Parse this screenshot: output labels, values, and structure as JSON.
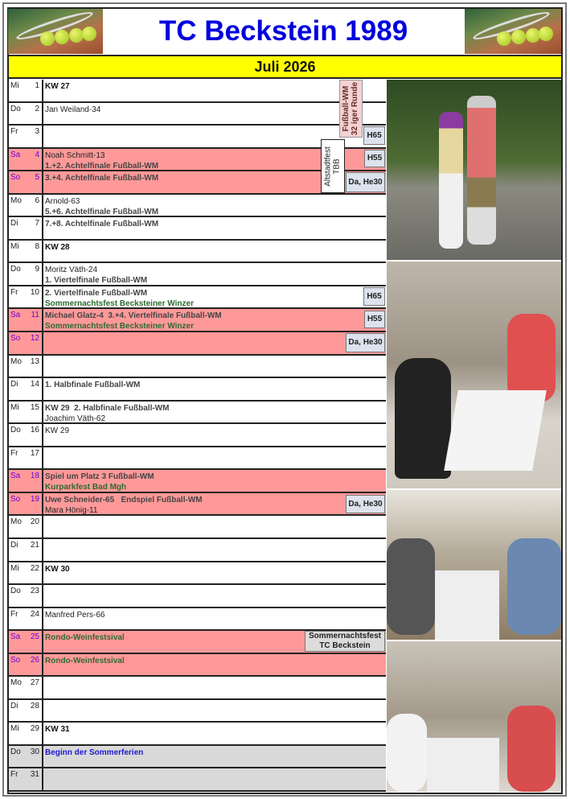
{
  "header": {
    "title": "TC Beckstein 1989",
    "month": "Juli 2026",
    "logo_icon": "tennis-balls-racket-logo"
  },
  "colors": {
    "title": "#0000dd",
    "month_bar": "#ffff00",
    "weekend": "#ff9999",
    "holiday": "#d9d9d9",
    "badge": "#dce3ee"
  },
  "rows": [
    {
      "day": "Mi",
      "num": "1",
      "lines": [
        {
          "t": "KW 27",
          "s": "kw"
        }
      ]
    },
    {
      "day": "Do",
      "num": "2",
      "lines": [
        {
          "t": "Jan Weiland-34",
          "s": "name"
        }
      ]
    },
    {
      "day": "Fr",
      "num": "3",
      "lines": []
    },
    {
      "day": "Sa",
      "num": "4",
      "we": true,
      "lines": [
        {
          "t": "Noah Schmitt-13",
          "s": "name"
        },
        {
          "t": "1.+2. Achtelfinale Fußball-WM",
          "s": "wm"
        }
      ]
    },
    {
      "day": "So",
      "num": "5",
      "we": true,
      "lines": [
        {
          "t": "3.+4. Achtelfinale Fußball-WM",
          "s": "wm"
        }
      ]
    },
    {
      "day": "Mo",
      "num": "6",
      "lines": [
        {
          "t": "Arnold-63",
          "s": "name"
        },
        {
          "t": "5.+6. Achtelfinale Fußball-WM",
          "s": "wm"
        }
      ]
    },
    {
      "day": "Di",
      "num": "7",
      "lines": [
        {
          "t": "7.+8. Achtelfinale Fußball-WM",
          "s": "wm"
        }
      ]
    },
    {
      "day": "Mi",
      "num": "8",
      "lines": [
        {
          "t": "KW 28",
          "s": "kw"
        }
      ]
    },
    {
      "day": "Do",
      "num": "9",
      "lines": [
        {
          "t": "Moritz Väth-24",
          "s": "name"
        },
        {
          "t": "1. Viertelfinale Fußball-WM",
          "s": "wm"
        }
      ]
    },
    {
      "day": "Fr",
      "num": "10",
      "lines": [
        {
          "t": "2. Viertelfinale Fußball-WM",
          "s": "wm"
        },
        {
          "t": "Sommernachtsfest Becksteiner Winzer",
          "s": "fest"
        }
      ]
    },
    {
      "day": "Sa",
      "num": "11",
      "we": true,
      "lines": [
        {
          "t": "Michael Glatz-4  3.+4. Viertelfinale Fußball-WM",
          "s": "wm"
        },
        {
          "t": "Sommernachtsfest Becksteiner Winzer",
          "s": "fest"
        }
      ]
    },
    {
      "day": "So",
      "num": "12",
      "we": true,
      "lines": []
    },
    {
      "day": "Mo",
      "num": "13",
      "lines": []
    },
    {
      "day": "Di",
      "num": "14",
      "lines": [
        {
          "t": "1. Halbfinale Fußball-WM",
          "s": "wm"
        }
      ]
    },
    {
      "day": "Mi",
      "num": "15",
      "lines": [
        {
          "t": "KW 29  2. Halbfinale Fußball-WM",
          "s": "wm"
        },
        {
          "t": "Joachim Väth-62",
          "s": "name"
        }
      ]
    },
    {
      "day": "Do",
      "num": "16",
      "lines": [
        {
          "t": "KW 29",
          "s": "name"
        }
      ]
    },
    {
      "day": "Fr",
      "num": "17",
      "lines": []
    },
    {
      "day": "Sa",
      "num": "18",
      "we": true,
      "lines": [
        {
          "t": "Spiel um Platz 3 Fußball-WM",
          "s": "wm"
        },
        {
          "t": "Kurparkfest Bad Mgh",
          "s": "fest"
        }
      ]
    },
    {
      "day": "So",
      "num": "19",
      "we": true,
      "lines": [
        {
          "t": "Uwe Schneider-65   Endspiel Fußball-WM",
          "s": "wm"
        },
        {
          "t": "Mara Hönig-11",
          "s": "name"
        }
      ]
    },
    {
      "day": "Mo",
      "num": "20",
      "lines": []
    },
    {
      "day": "Di",
      "num": "21",
      "lines": []
    },
    {
      "day": "Mi",
      "num": "22",
      "lines": [
        {
          "t": "KW 30",
          "s": "kw"
        }
      ]
    },
    {
      "day": "Do",
      "num": "23",
      "lines": []
    },
    {
      "day": "Fr",
      "num": "24",
      "lines": [
        {
          "t": "Manfred Pers-66",
          "s": "name"
        }
      ]
    },
    {
      "day": "Sa",
      "num": "25",
      "we": true,
      "lines": [
        {
          "t": "Rondo-Weinfestsival",
          "s": "fest"
        }
      ]
    },
    {
      "day": "So",
      "num": "26",
      "we": true,
      "lines": [
        {
          "t": "Rondo-Weinfestsival",
          "s": "fest"
        }
      ]
    },
    {
      "day": "Mo",
      "num": "27",
      "lines": []
    },
    {
      "day": "Di",
      "num": "28",
      "lines": []
    },
    {
      "day": "Mi",
      "num": "29",
      "lines": [
        {
          "t": "KW 31",
          "s": "kw"
        }
      ]
    },
    {
      "day": "Do",
      "num": "30",
      "gray": true,
      "lines": [
        {
          "t": "Beginn der Sommerferien",
          "s": "blue"
        }
      ]
    },
    {
      "day": "Fr",
      "num": "31",
      "gray": true,
      "lines": []
    }
  ],
  "badges": {
    "wm_round": "Fußball-WM\n32 iger Runde",
    "altstadtfest": "Altstadtfest\nTBB",
    "h65": "H65",
    "h55": "H55",
    "da_he30": "Da, He30",
    "sommernachtsfest": "Sommernachtsfest\nTC Beckstein"
  },
  "photos": [
    "dancing-couple-photo",
    "garage-party-photo",
    "covered-terrace-party-photo",
    "garage-group-photo"
  ]
}
